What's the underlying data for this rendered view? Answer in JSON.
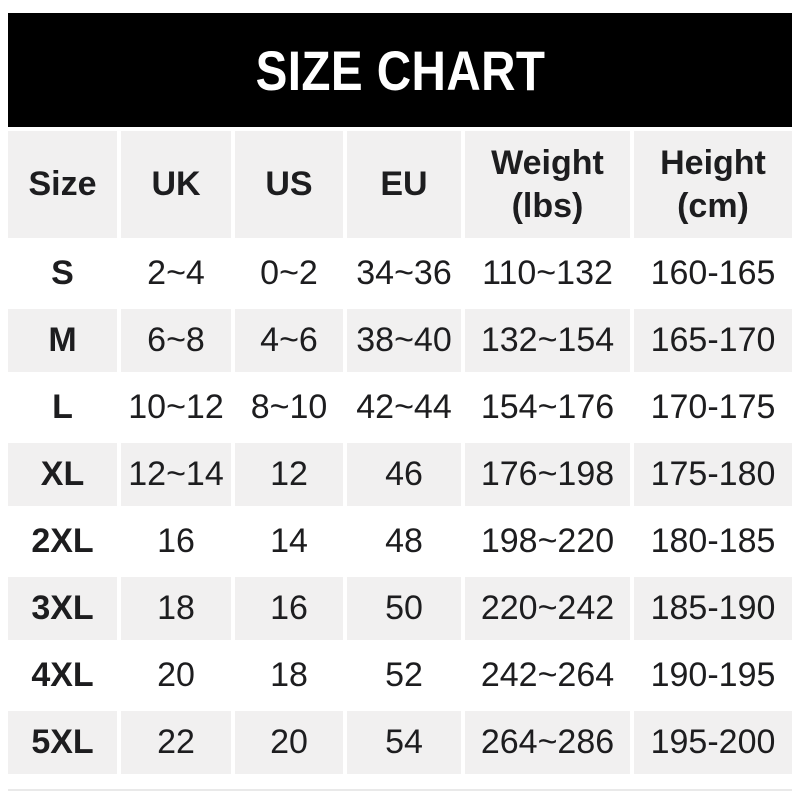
{
  "chart_data": {
    "type": "table",
    "title": "SIZE CHART",
    "columns": [
      {
        "label": "Size",
        "unit": ""
      },
      {
        "label": "UK",
        "unit": ""
      },
      {
        "label": "US",
        "unit": ""
      },
      {
        "label": "EU",
        "unit": ""
      },
      {
        "label": "Weight",
        "unit": "(lbs)"
      },
      {
        "label": "Height",
        "unit": "(cm)"
      }
    ],
    "rows": [
      [
        "S",
        "2~4",
        "0~2",
        "34~36",
        "110~132",
        "160-165"
      ],
      [
        "M",
        "6~8",
        "4~6",
        "38~40",
        "132~154",
        "165-170"
      ],
      [
        "L",
        "10~12",
        "8~10",
        "42~44",
        "154~176",
        "170-175"
      ],
      [
        "XL",
        "12~14",
        "12",
        "46",
        "176~198",
        "175-180"
      ],
      [
        "2XL",
        "16",
        "14",
        "48",
        "198~220",
        "180-185"
      ],
      [
        "3XL",
        "18",
        "16",
        "50",
        "220~242",
        "185-190"
      ],
      [
        "4XL",
        "20",
        "18",
        "52",
        "242~264",
        "190-195"
      ],
      [
        "5XL",
        "22",
        "20",
        "54",
        "264~286",
        "195-200"
      ]
    ],
    "colors": {
      "banner_bg": "#000000",
      "banner_text": "#ffffff",
      "row_alt_bg": "#f1f0f0",
      "row_bg": "#ffffff",
      "text": "#1d1d1f"
    },
    "layout": {
      "grid": "white 4px gutters between cells",
      "legend": "none"
    }
  }
}
